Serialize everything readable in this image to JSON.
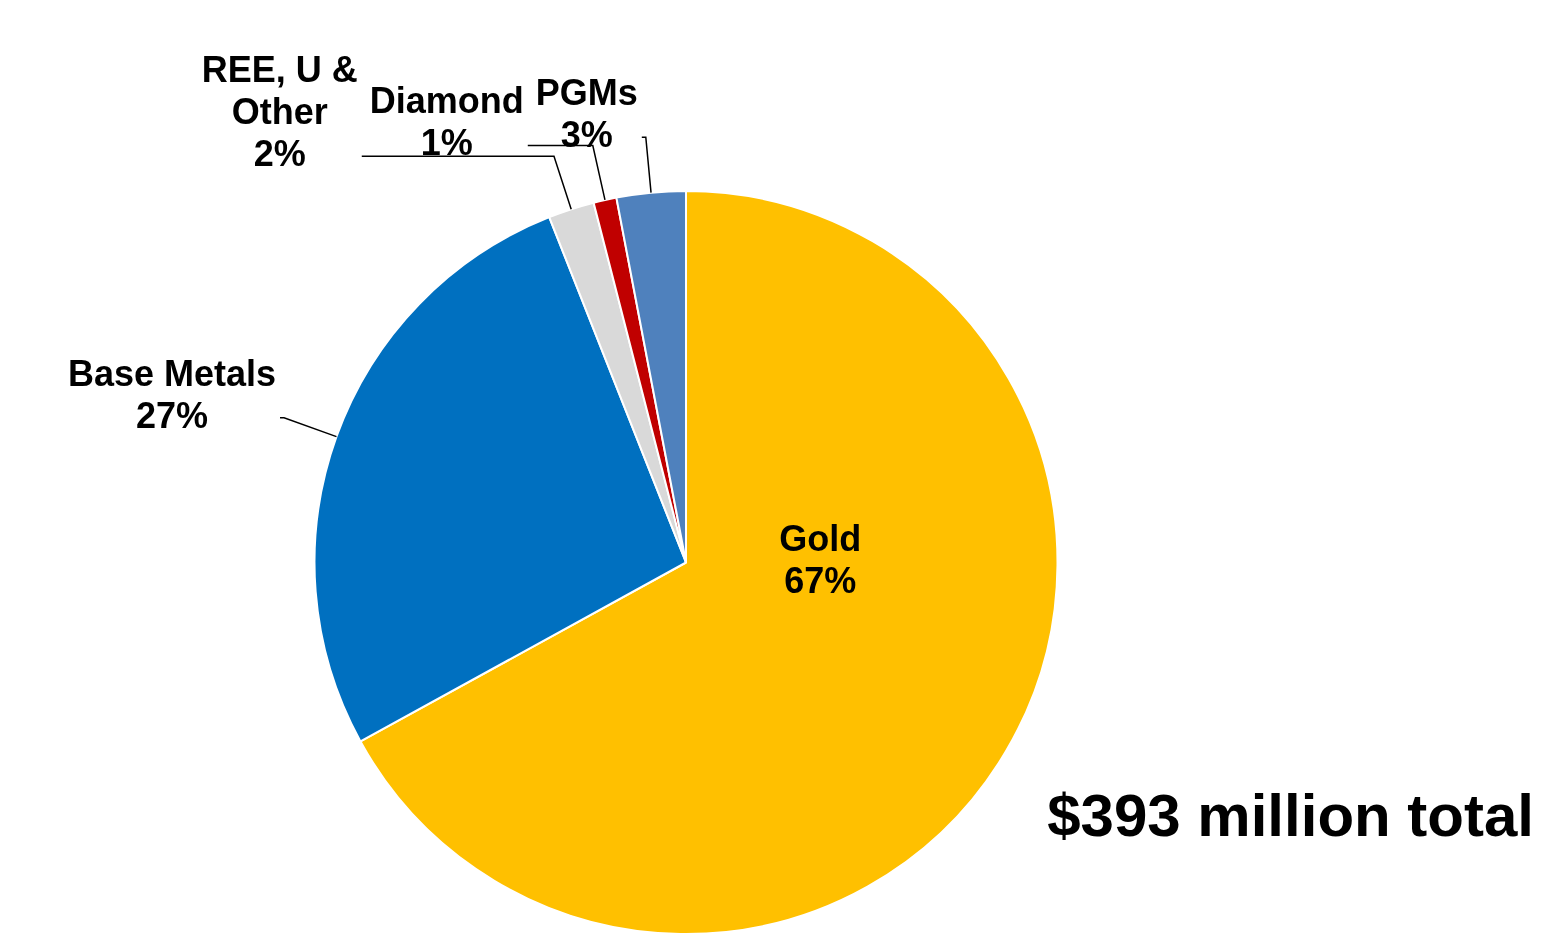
{
  "chart_data": {
    "type": "pie",
    "categories": [
      "Gold",
      "Base Metals",
      "REE, U & Other",
      "Diamond",
      "PGMs"
    ],
    "values": [
      67,
      27,
      2,
      1,
      3
    ],
    "value_labels": [
      "67%",
      "27%",
      "2%",
      "1%",
      "3%"
    ],
    "colors": [
      "#ffc000",
      "#0070c0",
      "#d9d9d9",
      "#c00000",
      "#4f81bd"
    ],
    "legend": false,
    "annotations": [
      "$393 million total"
    ]
  }
}
